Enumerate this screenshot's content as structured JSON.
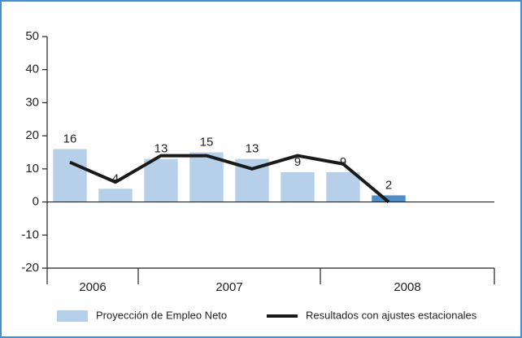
{
  "chart_data": {
    "type": "bar",
    "categories": [
      null,
      null,
      null,
      null,
      null,
      null,
      null,
      null,
      null,
      null
    ],
    "groups": [
      {
        "label": "2006",
        "count": 2
      },
      {
        "label": "2007",
        "count": 4
      },
      {
        "label": "2008",
        "count": 4
      }
    ],
    "series": [
      {
        "name": "Proyección de Empleo Neto",
        "type": "bar",
        "color": "#b6d0ea",
        "colors": [
          "#b6d0ea",
          "#b6d0ea",
          "#b6d0ea",
          "#b6d0ea",
          "#b6d0ea",
          "#b6d0ea",
          "#b6d0ea",
          "#4a8fcc",
          null,
          null
        ],
        "values": [
          16,
          4,
          13,
          15,
          13,
          9,
          9,
          2,
          null,
          null
        ]
      },
      {
        "name": "Resultados con ajustes estacionales",
        "type": "line",
        "color": "#1a1a1a",
        "values": [
          12,
          6,
          14,
          14,
          10,
          14,
          11.5,
          0,
          null,
          null
        ]
      }
    ],
    "ylim": [
      -20,
      50
    ],
    "yticks": [
      -20,
      -10,
      0,
      10,
      20,
      30,
      40,
      50
    ]
  }
}
